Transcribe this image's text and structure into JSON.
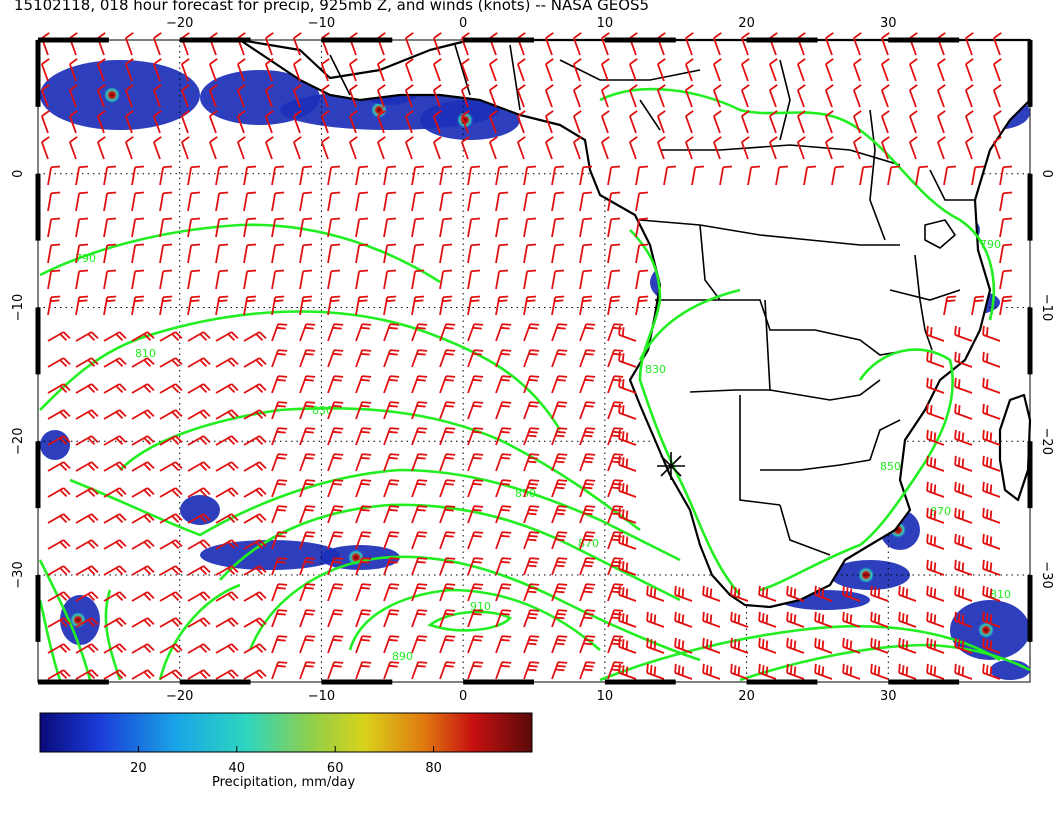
{
  "title": "15102118, 018 hour forecast for precip, 925mb Z, and winds (knots) -- NASA GEOS5",
  "map": {
    "lon_range": [
      -30,
      40
    ],
    "lat_range": [
      -38,
      10
    ],
    "lon_ticks": [
      "−20",
      "−10",
      "0",
      "10",
      "20",
      "30"
    ],
    "lat_ticks": [
      "0",
      "−10",
      "−20",
      "−30"
    ],
    "colors": {
      "wind": "#e01010",
      "contour": "#22ee22",
      "coast": "#000000",
      "grid": "#000000"
    }
  },
  "contours": {
    "labels": [
      "790",
      "810",
      "830",
      "850",
      "870",
      "890",
      "910",
      "850",
      "870",
      "810",
      "790",
      "830"
    ]
  },
  "colorbar": {
    "ticks": [
      "20",
      "40",
      "60",
      "80"
    ],
    "label": "Precipitation, mm/day",
    "range": [
      0,
      100
    ]
  }
}
